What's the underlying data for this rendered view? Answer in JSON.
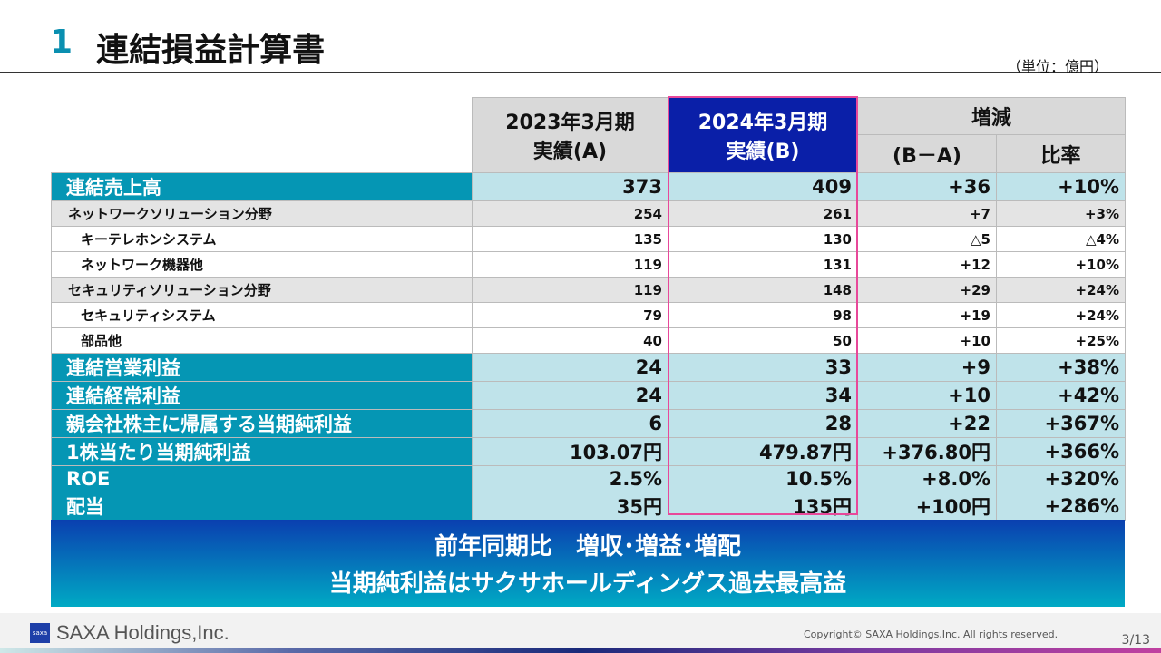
{
  "header": {
    "number": "1",
    "title": "連結損益計算書",
    "unit": "（単位：億円）"
  },
  "table": {
    "col_a": [
      "2023年3月期",
      "実績(A)"
    ],
    "col_b": [
      "2024年3月期",
      "実績(B)"
    ],
    "col_diff_group": "増減",
    "col_diff": "(B－A)",
    "col_ratio": "比率",
    "rows": [
      {
        "type": "big",
        "label": "連結売上高",
        "a": "373",
        "b": "409",
        "diff": "+36",
        "ratio": "+10%"
      },
      {
        "type": "seg",
        "label": "ネットワークソリューション分野",
        "a": "254",
        "b": "261",
        "diff": "+7",
        "ratio": "+3%"
      },
      {
        "type": "sub",
        "label": "キーテレホンシステム",
        "a": "135",
        "b": "130",
        "diff": "△5",
        "ratio": "△4%"
      },
      {
        "type": "sub",
        "label": "ネットワーク機器他",
        "a": "119",
        "b": "131",
        "diff": "+12",
        "ratio": "+10%"
      },
      {
        "type": "seg",
        "label": "セキュリティソリューション分野",
        "a": "119",
        "b": "148",
        "diff": "+29",
        "ratio": "+24%"
      },
      {
        "type": "sub",
        "label": "セキュリティシステム",
        "a": "79",
        "b": "98",
        "diff": "+19",
        "ratio": "+24%"
      },
      {
        "type": "sub",
        "label": "部品他",
        "a": "40",
        "b": "50",
        "diff": "+10",
        "ratio": "+25%"
      },
      {
        "type": "big",
        "label": "連結営業利益",
        "a": "24",
        "b": "33",
        "diff": "+9",
        "ratio": "+38%"
      },
      {
        "type": "big",
        "label": "連結経常利益",
        "a": "24",
        "b": "34",
        "diff": "+10",
        "ratio": "+42%"
      },
      {
        "type": "big",
        "label": "親会社株主に帰属する当期純利益",
        "a": "6",
        "b": "28",
        "diff": "+22",
        "ratio": "+367%"
      },
      {
        "type": "big",
        "label": "1株当たり当期純利益",
        "a": "103.07円",
        "b": "479.87円",
        "diff": "+376.80円",
        "ratio": "+366%"
      },
      {
        "type": "big",
        "label": "ROE",
        "a": "2.5%",
        "b": "10.5%",
        "diff": "+8.0%",
        "ratio": "+320%"
      },
      {
        "type": "big",
        "label": "配当",
        "a": "35円",
        "b": "135円",
        "diff": "+100円",
        "ratio": "+286%"
      }
    ]
  },
  "banner": {
    "line1": "前年同期比　増収･増益･増配",
    "line2": "当期純利益はサクサホールディングス過去最高益"
  },
  "footer": {
    "logo": "saxa",
    "company": "SAXA Holdings,Inc.",
    "copyright": "Copyright© SAXA Holdings,Inc. All rights reserved.",
    "page": "3/13"
  },
  "colors": {
    "accent": "#0596b4",
    "highlight_header": "#0a1fa8",
    "highlight_border": "#e8489a"
  }
}
